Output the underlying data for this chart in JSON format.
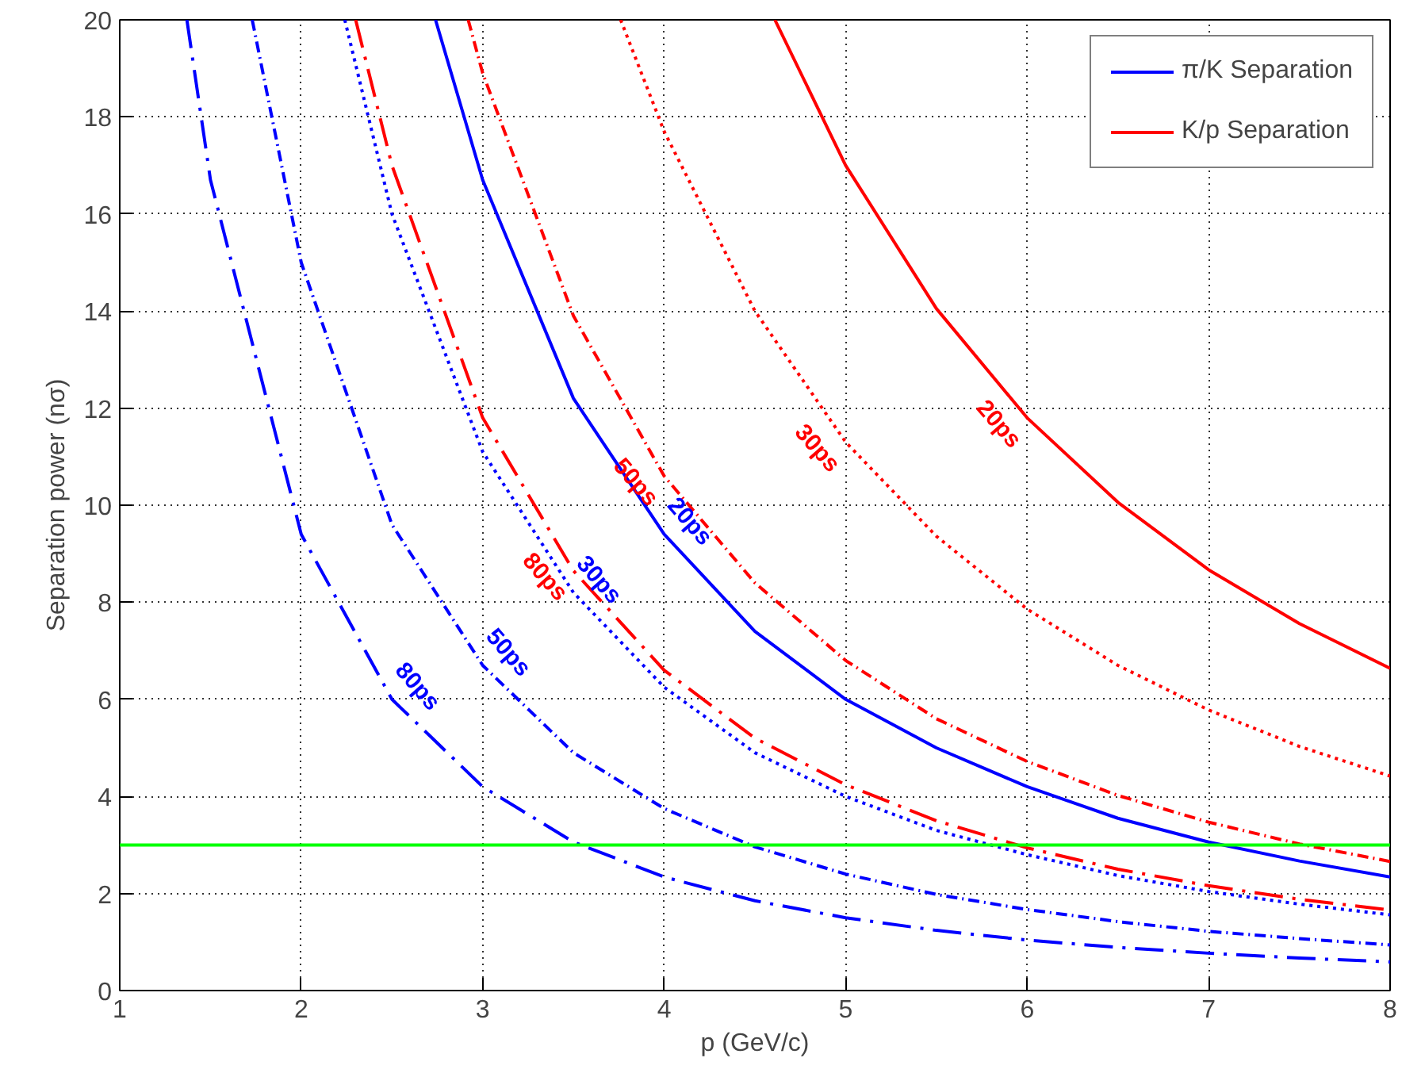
{
  "chart_data": {
    "type": "line",
    "xlabel": "p (GeV/c)",
    "ylabel": "Separation power (nσ)",
    "xlim": [
      1,
      8
    ],
    "ylim": [
      0,
      20
    ],
    "xticks": [
      1,
      2,
      3,
      4,
      5,
      6,
      7,
      8
    ],
    "yticks": [
      0,
      2,
      4,
      6,
      8,
      10,
      12,
      14,
      16,
      18,
      20
    ],
    "grid": true,
    "legend": "top right",
    "marker": "none",
    "series": [
      {
        "name": "π/K Separation",
        "color": "#0000ff",
        "line_style": "solid",
        "x": [
          2.74,
          3,
          3.5,
          4,
          4.5,
          5,
          5.5,
          6,
          6.5,
          7,
          7.5,
          8
        ],
        "values": [
          20,
          16.7,
          12.2,
          9.4,
          7.4,
          6,
          5,
          4.2,
          3.55,
          3.06,
          2.67,
          2.34
        ]
      },
      {
        "color": "#0000ff",
        "line_style": "dotted",
        "x": [
          2.24,
          2.5,
          3,
          3.5,
          4,
          4.5,
          5,
          5.5,
          6,
          6.5,
          7,
          7.5,
          8
        ],
        "values": [
          20,
          16,
          11.1,
          8.2,
          6.25,
          4.9,
          4,
          3.3,
          2.8,
          2.37,
          2.04,
          1.78,
          1.56
        ]
      },
      {
        "color": "#0000ff",
        "line_style": "dashdot",
        "x": [
          1.73,
          2,
          2.5,
          3,
          3.5,
          4,
          4.5,
          5,
          5.5,
          6,
          6.5,
          7,
          7.5,
          8
        ],
        "values": [
          20,
          15,
          9.6,
          6.7,
          4.9,
          3.75,
          2.96,
          2.4,
          1.98,
          1.67,
          1.42,
          1.22,
          1.07,
          0.94
        ]
      },
      {
        "color": "#0000ff",
        "line_style": "longdashdot",
        "x": [
          1.37,
          1.5,
          2,
          2.5,
          3,
          3.5,
          4,
          4.5,
          5,
          5.5,
          6,
          6.5,
          7,
          7.5,
          8
        ],
        "values": [
          20,
          16.7,
          9.4,
          6,
          4.2,
          3.06,
          2.34,
          1.85,
          1.5,
          1.24,
          1.04,
          0.89,
          0.77,
          0.67,
          0.59
        ]
      },
      {
        "name": "K/p Separation",
        "color": "#ff0000",
        "line_style": "solid",
        "x": [
          4.61,
          5,
          5.5,
          6,
          6.5,
          7,
          7.5,
          8
        ],
        "values": [
          20,
          17,
          14.05,
          11.8,
          10.06,
          8.67,
          7.56,
          6.64
        ]
      },
      {
        "color": "#ff0000",
        "line_style": "dotted",
        "x": [
          3.76,
          4,
          4.5,
          5,
          5.5,
          6,
          6.5,
          7,
          7.5,
          8
        ],
        "values": [
          20,
          17.7,
          14,
          11.3,
          9.36,
          7.86,
          6.7,
          5.78,
          5.03,
          4.42
        ]
      },
      {
        "color": "#ff0000",
        "line_style": "dashdot",
        "x": [
          2.92,
          3,
          3.5,
          4,
          4.5,
          5,
          5.5,
          6,
          6.5,
          7,
          7.5,
          8
        ],
        "values": [
          20,
          18.9,
          13.9,
          10.6,
          8.4,
          6.8,
          5.6,
          4.72,
          4.02,
          3.47,
          3.02,
          2.66
        ]
      },
      {
        "color": "#ff0000",
        "line_style": "longdashdot",
        "x": [
          2.3,
          2.5,
          3,
          3.5,
          4,
          4.5,
          5,
          5.5,
          6,
          6.5,
          7,
          7.5,
          8
        ],
        "values": [
          20,
          17,
          11.8,
          8.65,
          6.6,
          5.2,
          4.24,
          3.5,
          2.94,
          2.5,
          2.16,
          1.88,
          1.66
        ]
      }
    ],
    "ref_lines": [
      {
        "axis": "y",
        "value": 3,
        "color": "#00ff00",
        "line_style": "solid"
      }
    ],
    "annotations": [
      "20ps",
      "30ps",
      "50ps",
      "80ps",
      "20ps",
      "30ps",
      "50ps",
      "80ps"
    ]
  }
}
